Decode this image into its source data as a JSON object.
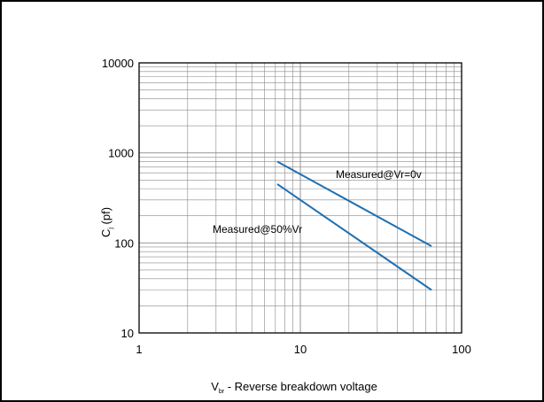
{
  "chart_data": {
    "type": "line",
    "xscale": "log",
    "yscale": "log",
    "xlim": [
      1,
      100
    ],
    "ylim": [
      10,
      10000
    ],
    "grid": true,
    "x_ticks": [
      "1",
      "10",
      "100"
    ],
    "y_ticks": [
      "10",
      "100",
      "1000",
      "10000"
    ],
    "xlabel": {
      "main": "V",
      "sub": "br",
      "rest": " - Reverse breakdown voltage"
    },
    "ylabel": {
      "main": "C",
      "sub": "j",
      "rest": " (pf)"
    },
    "series": [
      {
        "name": "Measured@Vr=0v",
        "x": [
          7.2,
          65
        ],
        "y": [
          800,
          92
        ],
        "color": "#1f6fb2"
      },
      {
        "name": "Measured@50%Vr",
        "x": [
          7.2,
          65
        ],
        "y": [
          450,
          30
        ],
        "color": "#1f6fb2"
      }
    ]
  }
}
